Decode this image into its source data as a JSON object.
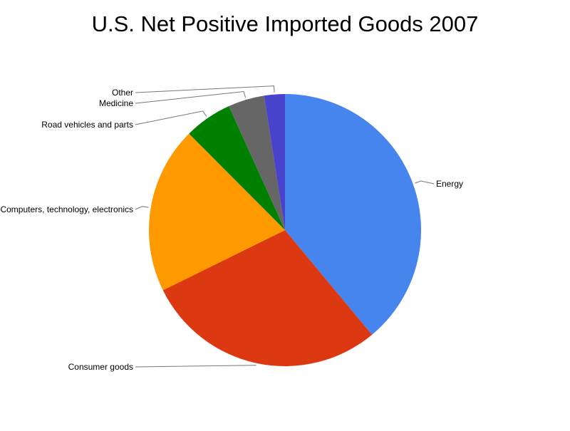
{
  "chart_data": {
    "type": "pie",
    "title": "U.S. Net Positive Imported Goods 2007",
    "categories": [
      "Energy",
      "Consumer goods",
      "Computers, technology, electronics",
      "Road vehicles and parts",
      "Medicine",
      "Other"
    ],
    "values": [
      39.7,
      29.3,
      20.2,
      5.8,
      4.4,
      2.5
    ],
    "colors": [
      "#4684ee",
      "#dc3912",
      "#ff9900",
      "#008000",
      "#666666",
      "#4942cc"
    ],
    "legend": "labels-outside-with-leader-lines"
  }
}
